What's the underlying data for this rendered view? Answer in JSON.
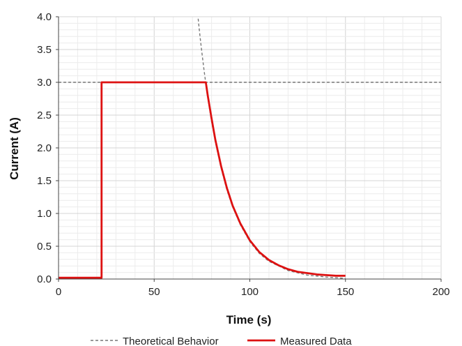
{
  "chart_data": {
    "type": "line",
    "xlabel": "Time (s)",
    "ylabel": "Current (A)",
    "xlim": [
      0,
      200
    ],
    "ylim": [
      0,
      4.0
    ],
    "x_ticks": [
      "0",
      "50",
      "100",
      "150",
      "200"
    ],
    "y_ticks": [
      "0.0",
      "0.5",
      "1.0",
      "1.5",
      "2.0",
      "2.5",
      "3.0",
      "3.5",
      "4.0"
    ],
    "grid": true,
    "legend_position": "bottom",
    "series": [
      {
        "name": "Theoretical Behavior",
        "style": "dashed",
        "color": "#777777",
        "segments": [
          {
            "x": [
              0,
              200
            ],
            "y": [
              3.0,
              3.0
            ]
          },
          {
            "x": [
              73,
              74,
              75,
              76,
              77,
              78,
              80,
              82,
              85,
              88,
              91,
              95,
              100,
              105,
              110,
              120,
              130,
              140,
              150
            ],
            "y": [
              3.97,
              3.69,
              3.44,
              3.2,
              2.98,
              2.77,
              2.4,
              2.09,
              1.69,
              1.36,
              1.1,
              0.83,
              0.57,
              0.39,
              0.27,
              0.13,
              0.06,
              0.03,
              0.01
            ]
          }
        ]
      },
      {
        "name": "Measured Data",
        "style": "solid",
        "color": "#dd1111",
        "segments": [
          {
            "x": [
              0,
              22.5,
              22.5,
              77,
              78,
              80,
              82,
              85,
              88,
              91,
              95,
              100,
              105,
              110,
              115,
              120,
              125,
              130,
              135,
              140,
              145,
              150
            ],
            "y": [
              0.02,
              0.02,
              3.0,
              3.0,
              2.8,
              2.45,
              2.12,
              1.72,
              1.39,
              1.12,
              0.85,
              0.59,
              0.41,
              0.29,
              0.21,
              0.15,
              0.11,
              0.09,
              0.07,
              0.06,
              0.05,
              0.05
            ]
          }
        ]
      }
    ]
  }
}
